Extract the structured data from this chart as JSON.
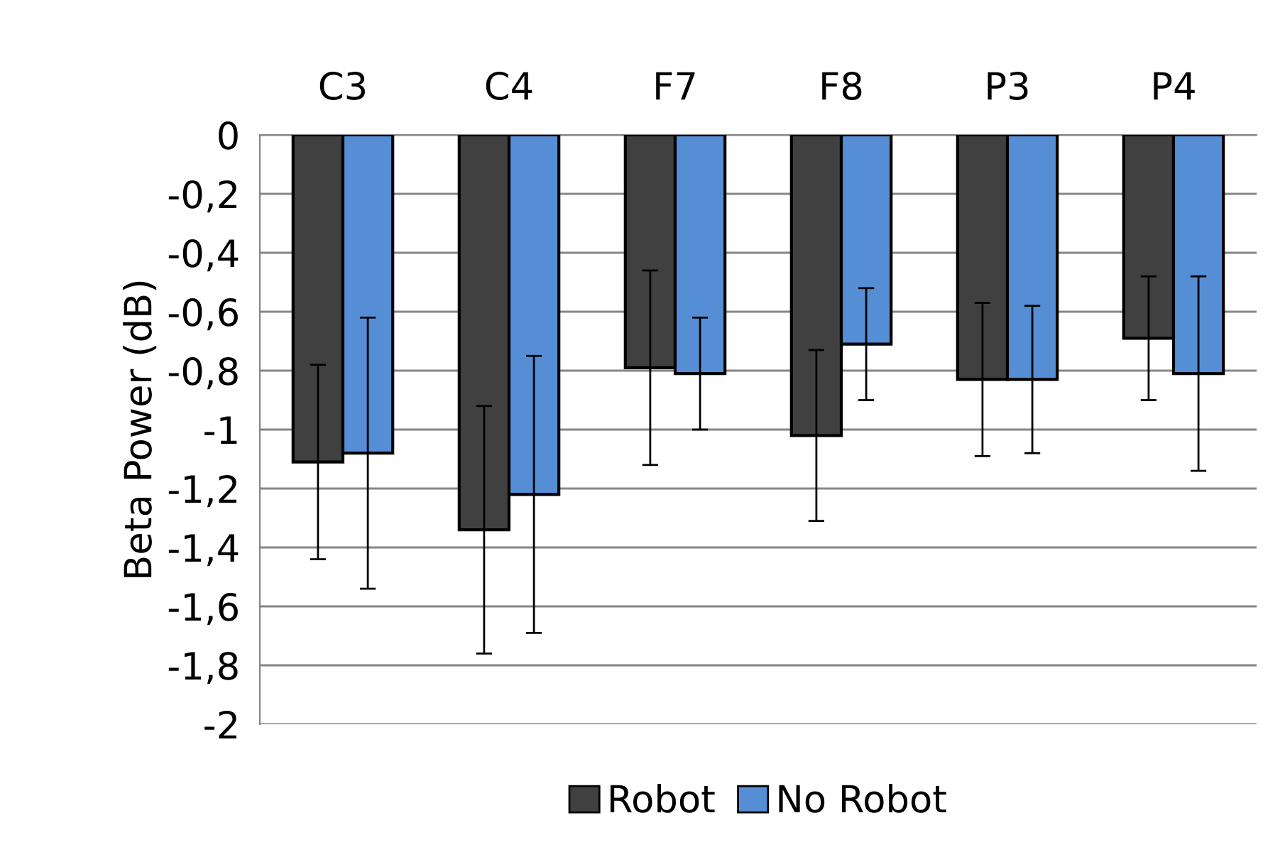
{
  "chart_data": {
    "type": "bar",
    "ylabel": "Beta Power (dB)",
    "categories": [
      "C3",
      "C4",
      "F7",
      "F8",
      "P3",
      "P4"
    ],
    "series": [
      {
        "name": "Robot",
        "color": "#404040",
        "values": [
          -1.11,
          -1.34,
          -0.79,
          -1.02,
          -0.83,
          -0.69
        ],
        "errors": [
          0.33,
          0.42,
          0.33,
          0.29,
          0.26,
          0.21
        ]
      },
      {
        "name": "No Robot",
        "color": "#558ed5",
        "values": [
          -1.08,
          -1.22,
          -0.81,
          -0.71,
          -0.83,
          -0.81
        ],
        "errors": [
          0.46,
          0.47,
          0.19,
          0.19,
          0.25,
          0.33
        ]
      }
    ],
    "ylim": [
      -2,
      0
    ],
    "yticks": [
      0,
      {
        "value": -0.2,
        "label": "-0,2"
      },
      {
        "value": -0.4,
        "label": "-0,4"
      },
      {
        "value": -0.6,
        "label": "-0,6"
      },
      {
        "value": -0.8,
        "label": "-0,8"
      },
      -1,
      {
        "value": -1.2,
        "label": "-1,2"
      },
      {
        "value": -1.4,
        "label": "-1,4"
      },
      {
        "value": -1.6,
        "label": "-1,6"
      },
      {
        "value": -1.8,
        "label": "-1,8"
      },
      -2
    ],
    "grid": "y",
    "legend": "bottom"
  }
}
